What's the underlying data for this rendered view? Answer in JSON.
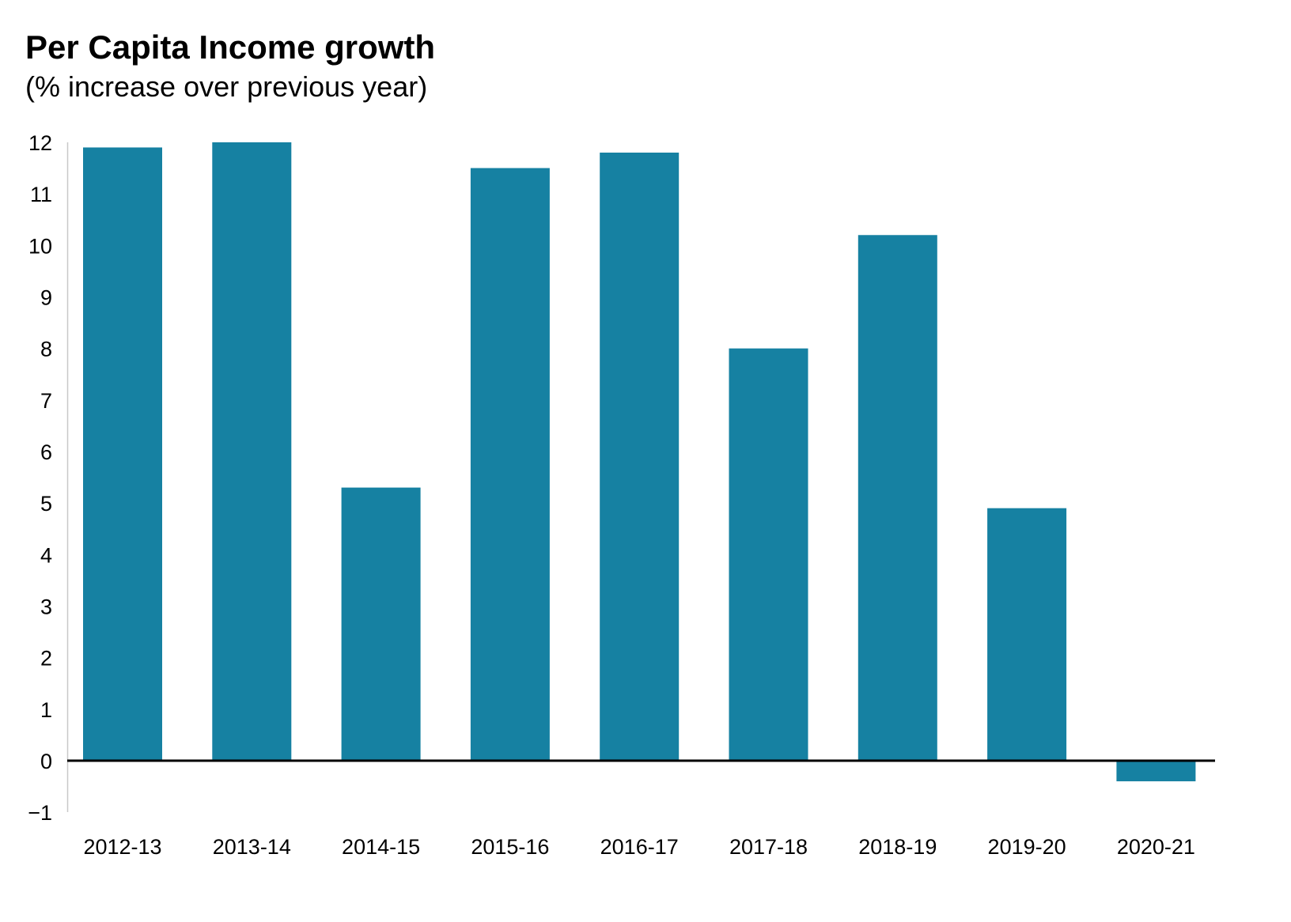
{
  "chart_data": {
    "type": "bar",
    "title": "Per Capita Income growth",
    "subtitle": "(% increase over previous year)",
    "xlabel": "",
    "ylabel": "",
    "categories": [
      "2012-13",
      "2013-14",
      "2014-15",
      "2015-16",
      "2016-17",
      "2017-18",
      "2018-19",
      "2019-20",
      "2020-21"
    ],
    "values": [
      11.9,
      12.0,
      5.3,
      11.5,
      11.8,
      8.0,
      10.2,
      4.9,
      -0.4
    ],
    "ylim": [
      -1,
      12
    ],
    "yticks": [
      "−1",
      "0",
      "1",
      "2",
      "3",
      "4",
      "5",
      "6",
      "7",
      "8",
      "9",
      "10",
      "11",
      "12"
    ],
    "grid": false,
    "legend": "none",
    "bar_color": "#1681a2"
  }
}
